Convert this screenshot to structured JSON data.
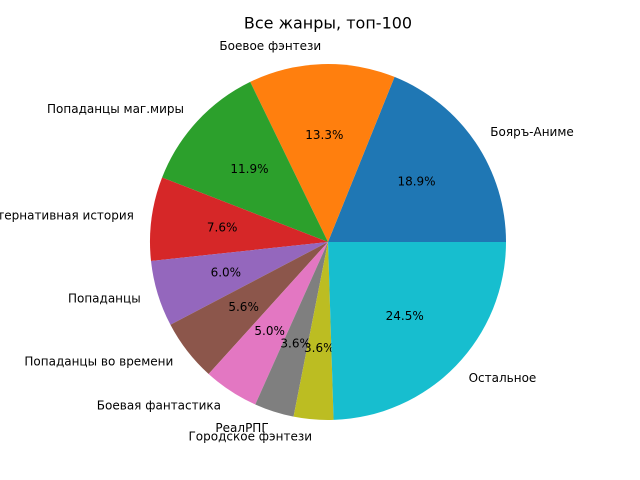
{
  "chart_data": {
    "type": "pie",
    "title": "Все жанры, топ-100",
    "categories": [
      "Бояръ-Аниме",
      "Боевое фэнтези",
      "Попаданцы маг.миры",
      "Альтернативная история",
      "Попаданцы",
      "Попаданцы во времени",
      "Боевая фантастика",
      "РеалРПГ",
      "Городское фэнтези",
      "Остальное"
    ],
    "values": [
      18.9,
      13.3,
      11.9,
      7.6,
      6.0,
      5.6,
      5.0,
      3.6,
      3.6,
      24.5
    ],
    "value_labels": [
      "18.9%",
      "13.3%",
      "11.9%",
      "7.6%",
      "6.0%",
      "5.6%",
      "5.0%",
      "3.6%",
      "3.6%",
      "24.5%"
    ],
    "colors": [
      "#1f77b4",
      "#ff7f0e",
      "#2ca02c",
      "#d62728",
      "#9467bd",
      "#8c564b",
      "#e377c2",
      "#7f7f7f",
      "#bcbd22",
      "#17becf"
    ]
  }
}
